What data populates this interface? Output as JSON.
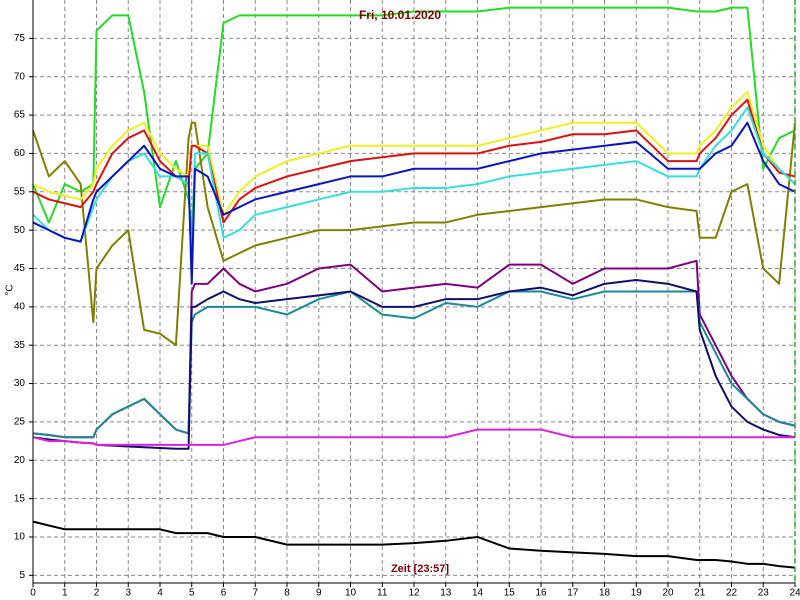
{
  "chart_data": {
    "type": "line",
    "title": "Fri, 10.01.2020",
    "x_label": "Zeit [23:57]",
    "y_label": "°C",
    "x": [
      0,
      0.5,
      1,
      1.5,
      1.9,
      2,
      2.5,
      3,
      3.5,
      4,
      4.5,
      4.9,
      5,
      5.1,
      5.5,
      6,
      6.5,
      7,
      8,
      9,
      10,
      11,
      12,
      13,
      14,
      15,
      16,
      17,
      18,
      19,
      20,
      20.9,
      21,
      21.5,
      22,
      22.5,
      23,
      23.5,
      24
    ],
    "xlim": [
      0,
      24
    ],
    "xticks": [
      0,
      1,
      2,
      3,
      4,
      5,
      6,
      7,
      8,
      9,
      10,
      11,
      12,
      13,
      14,
      15,
      16,
      17,
      18,
      19,
      20,
      21,
      22,
      23,
      24
    ],
    "ylim": [
      4,
      80
    ],
    "yticks": [
      5,
      10,
      15,
      20,
      25,
      30,
      35,
      40,
      45,
      50,
      55,
      60,
      65,
      70,
      75
    ],
    "grid": true,
    "series": [
      {
        "color": "#22dd22",
        "values": [
          56,
          51,
          56,
          55,
          56,
          76,
          78,
          78,
          68,
          53,
          59,
          54,
          50,
          58,
          60,
          77,
          78,
          78,
          78,
          78,
          78,
          78,
          78.5,
          78.5,
          78.5,
          79,
          79,
          79,
          79,
          79,
          79,
          78.5,
          78.5,
          78.5,
          79,
          79,
          58,
          62,
          63
        ]
      },
      {
        "color": "#808000",
        "values": [
          63,
          57,
          59,
          56,
          38,
          45,
          48,
          50,
          37,
          36.5,
          35,
          62,
          64,
          64,
          53,
          46,
          47,
          48,
          49,
          50,
          50,
          50.5,
          51,
          51,
          52,
          52.5,
          53,
          53.5,
          54,
          54,
          53,
          52.5,
          49,
          49,
          55,
          56,
          45,
          43,
          64
        ]
      },
      {
        "color": "#f0f020",
        "values": [
          56,
          55,
          54.5,
          54,
          56,
          58,
          61,
          63,
          64,
          60,
          58,
          57,
          61,
          61,
          61,
          52,
          55,
          57,
          59,
          60,
          61,
          61,
          61,
          61,
          61,
          62,
          63,
          64,
          64,
          64,
          60,
          60,
          61,
          63,
          66,
          68,
          61,
          58,
          56
        ]
      },
      {
        "color": "#dd1111",
        "values": [
          55,
          54,
          53.5,
          53,
          55,
          56,
          60,
          62,
          63,
          59,
          57,
          56,
          61,
          61,
          60,
          51,
          54,
          55.5,
          57,
          58,
          59,
          59.5,
          60,
          60,
          60,
          61,
          61.5,
          62.5,
          62.5,
          63,
          59,
          59,
          60,
          62,
          65,
          67,
          60,
          57.5,
          57
        ]
      },
      {
        "color": "#33e0e0",
        "values": [
          52,
          50,
          49,
          48.5,
          53,
          54,
          57,
          59,
          60,
          57,
          57,
          56,
          45,
          60,
          60,
          49,
          50,
          52,
          53,
          54,
          55,
          55,
          55.5,
          55.5,
          56,
          57,
          57.5,
          58,
          58.5,
          59,
          57,
          57,
          58,
          61,
          63,
          66,
          60,
          58,
          56
        ]
      },
      {
        "color": "#0a14c0",
        "values": [
          51,
          50,
          49,
          48.5,
          54,
          55,
          57,
          59,
          61,
          58,
          57,
          57,
          43,
          58,
          57,
          52,
          53,
          54,
          55,
          56,
          57,
          57,
          58,
          58,
          58,
          59,
          60,
          60.5,
          61,
          61.5,
          58,
          58,
          58,
          60,
          61,
          64,
          59,
          56,
          55
        ]
      },
      {
        "color": "#800080",
        "values": [
          23.5,
          23.3,
          23,
          23,
          23,
          24,
          26,
          27,
          28,
          26,
          24,
          23.5,
          42,
          43,
          43,
          45,
          43,
          42,
          43,
          45,
          45.5,
          42,
          42.5,
          43,
          42.5,
          45.5,
          45.5,
          43,
          45,
          45,
          45,
          46,
          39,
          35,
          31,
          28,
          26,
          25,
          24.5
        ]
      },
      {
        "color": "#1a8a9a",
        "values": [
          23.5,
          23.3,
          23,
          23,
          23,
          24,
          26,
          27,
          28,
          26,
          24,
          23.5,
          38,
          39,
          40,
          40,
          40,
          40,
          39,
          41,
          42,
          39,
          38.5,
          40.5,
          40,
          42,
          42,
          41,
          42,
          42,
          42,
          42,
          38,
          34,
          30,
          28,
          26,
          25,
          24.5
        ]
      },
      {
        "color": "#10106a",
        "values": [
          23,
          22.7,
          22.5,
          22.3,
          22.2,
          22,
          21.9,
          21.8,
          21.7,
          21.6,
          21.5,
          21.5,
          40,
          40,
          41,
          42,
          41,
          40.5,
          41,
          41.5,
          42,
          40,
          40,
          41,
          41,
          42,
          42.5,
          41.5,
          43,
          43.5,
          43,
          42,
          37,
          31,
          27,
          25,
          24,
          23.3,
          23
        ]
      },
      {
        "color": "#e020e0",
        "values": [
          23,
          22.5,
          22.5,
          22.3,
          22.2,
          22,
          22,
          22,
          22,
          22,
          22,
          22,
          22,
          22,
          22,
          22,
          22.5,
          23,
          23,
          23,
          23,
          23,
          23,
          23,
          24,
          24,
          24,
          23,
          23,
          23,
          23,
          23,
          23,
          23,
          23,
          23,
          23,
          23,
          23
        ]
      },
      {
        "color": "#000000",
        "values": [
          12,
          11.5,
          11,
          11,
          11,
          11,
          11,
          11,
          11,
          11,
          10.5,
          10.5,
          10.5,
          10.5,
          10.5,
          10,
          10,
          10,
          9,
          9,
          9,
          9,
          9.2,
          9.5,
          10,
          8.5,
          8.2,
          8,
          7.8,
          7.5,
          7.5,
          7,
          7,
          7,
          6.8,
          6.5,
          6.5,
          6.2,
          6
        ]
      }
    ]
  }
}
